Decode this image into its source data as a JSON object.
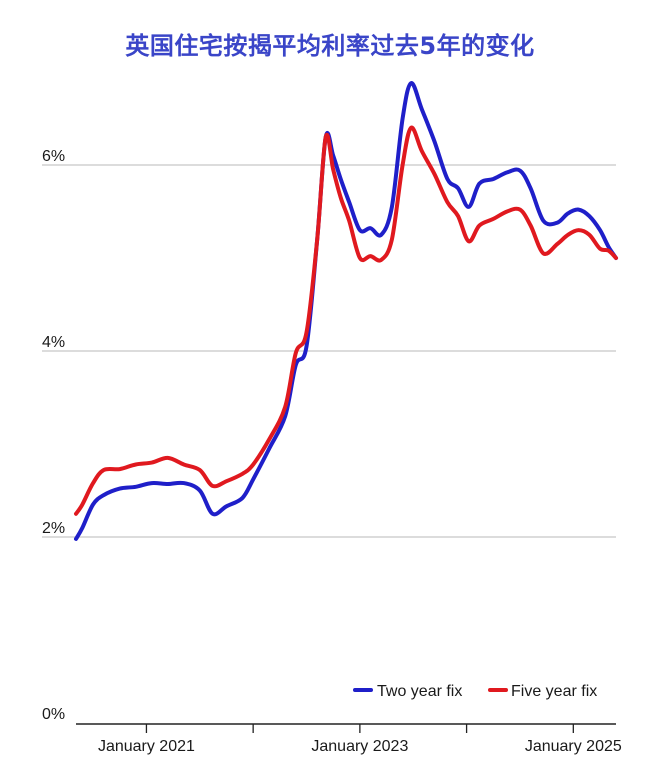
{
  "chart_data": {
    "type": "line",
    "title": "英国住宅按揭平均利率过去5年的变化",
    "xlabel": "",
    "ylabel": "",
    "x_range": [
      "2020-05",
      "2025-05"
    ],
    "xlim": [
      2020.34,
      2025.4
    ],
    "ylim": [
      0,
      7
    ],
    "x_ticks": [
      {
        "label": "January 2021",
        "value": 2021.0
      },
      {
        "label": "January 2023",
        "value": 2023.0
      },
      {
        "label": "January 2025",
        "value": 2025.0
      }
    ],
    "y_ticks": [
      {
        "label": "0%",
        "value": 0
      },
      {
        "label": "2%",
        "value": 2
      },
      {
        "label": "4%",
        "value": 4
      },
      {
        "label": "6%",
        "value": 6
      }
    ],
    "grid": "horizontal",
    "legend_position": "bottom-right",
    "series": [
      {
        "name": "Two year fix",
        "color": "#1f1fc9",
        "points": [
          [
            2020.34,
            1.98
          ],
          [
            2020.4,
            2.1
          ],
          [
            2020.5,
            2.35
          ],
          [
            2020.6,
            2.45
          ],
          [
            2020.75,
            2.52
          ],
          [
            2020.9,
            2.54
          ],
          [
            2021.05,
            2.58
          ],
          [
            2021.2,
            2.57
          ],
          [
            2021.35,
            2.58
          ],
          [
            2021.5,
            2.5
          ],
          [
            2021.62,
            2.25
          ],
          [
            2021.75,
            2.33
          ],
          [
            2021.9,
            2.42
          ],
          [
            2022.0,
            2.62
          ],
          [
            2022.15,
            2.95
          ],
          [
            2022.3,
            3.3
          ],
          [
            2022.4,
            3.85
          ],
          [
            2022.5,
            4.05
          ],
          [
            2022.6,
            5.2
          ],
          [
            2022.68,
            6.3
          ],
          [
            2022.75,
            6.1
          ],
          [
            2022.82,
            5.85
          ],
          [
            2022.9,
            5.6
          ],
          [
            2023.0,
            5.3
          ],
          [
            2023.1,
            5.32
          ],
          [
            2023.2,
            5.25
          ],
          [
            2023.3,
            5.55
          ],
          [
            2023.4,
            6.5
          ],
          [
            2023.48,
            6.88
          ],
          [
            2023.58,
            6.6
          ],
          [
            2023.7,
            6.25
          ],
          [
            2023.82,
            5.85
          ],
          [
            2023.92,
            5.75
          ],
          [
            2024.02,
            5.55
          ],
          [
            2024.12,
            5.8
          ],
          [
            2024.25,
            5.85
          ],
          [
            2024.38,
            5.92
          ],
          [
            2024.5,
            5.94
          ],
          [
            2024.6,
            5.75
          ],
          [
            2024.72,
            5.4
          ],
          [
            2024.85,
            5.38
          ],
          [
            2024.95,
            5.48
          ],
          [
            2025.05,
            5.52
          ],
          [
            2025.15,
            5.45
          ],
          [
            2025.25,
            5.3
          ],
          [
            2025.33,
            5.12
          ],
          [
            2025.4,
            5.0
          ]
        ]
      },
      {
        "name": "Five year fix",
        "color": "#e0191f",
        "points": [
          [
            2020.34,
            2.25
          ],
          [
            2020.4,
            2.35
          ],
          [
            2020.5,
            2.58
          ],
          [
            2020.6,
            2.72
          ],
          [
            2020.75,
            2.73
          ],
          [
            2020.9,
            2.78
          ],
          [
            2021.05,
            2.8
          ],
          [
            2021.2,
            2.85
          ],
          [
            2021.35,
            2.78
          ],
          [
            2021.5,
            2.72
          ],
          [
            2021.62,
            2.55
          ],
          [
            2021.75,
            2.6
          ],
          [
            2021.9,
            2.68
          ],
          [
            2022.0,
            2.78
          ],
          [
            2022.15,
            3.05
          ],
          [
            2022.3,
            3.4
          ],
          [
            2022.4,
            3.98
          ],
          [
            2022.5,
            4.2
          ],
          [
            2022.6,
            5.2
          ],
          [
            2022.68,
            6.3
          ],
          [
            2022.75,
            5.95
          ],
          [
            2022.82,
            5.65
          ],
          [
            2022.9,
            5.4
          ],
          [
            2023.0,
            5.0
          ],
          [
            2023.1,
            5.02
          ],
          [
            2023.2,
            4.98
          ],
          [
            2023.3,
            5.2
          ],
          [
            2023.4,
            6.0
          ],
          [
            2023.48,
            6.4
          ],
          [
            2023.58,
            6.15
          ],
          [
            2023.7,
            5.9
          ],
          [
            2023.82,
            5.6
          ],
          [
            2023.92,
            5.45
          ],
          [
            2024.02,
            5.18
          ],
          [
            2024.12,
            5.35
          ],
          [
            2024.25,
            5.42
          ],
          [
            2024.38,
            5.5
          ],
          [
            2024.5,
            5.52
          ],
          [
            2024.6,
            5.35
          ],
          [
            2024.72,
            5.05
          ],
          [
            2024.85,
            5.15
          ],
          [
            2024.95,
            5.25
          ],
          [
            2025.05,
            5.3
          ],
          [
            2025.15,
            5.25
          ],
          [
            2025.25,
            5.1
          ],
          [
            2025.33,
            5.08
          ],
          [
            2025.4,
            5.0
          ]
        ]
      }
    ]
  }
}
